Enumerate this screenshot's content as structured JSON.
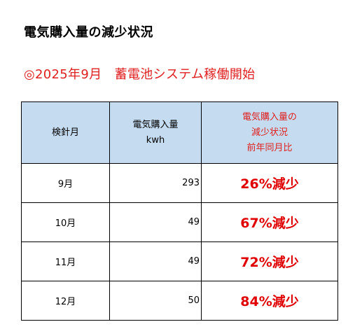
{
  "title": "電気購入量の減少状況",
  "subtitle": "◎2025年9月　蓄電池システム稼働開始",
  "table": {
    "headers": {
      "month": "検針月",
      "purchase_line1": "電気購入量",
      "purchase_line2": "kwh",
      "reduction_line1": "電気購入量の",
      "reduction_line2": "減少状況",
      "reduction_line3": "前年同月比"
    },
    "rows": [
      {
        "month": "9月",
        "value": "293",
        "reduction": "26%減少"
      },
      {
        "month": "10月",
        "value": "49",
        "reduction": "67%減少"
      },
      {
        "month": "11月",
        "value": "49",
        "reduction": "72%減少"
      },
      {
        "month": "12月",
        "value": "50",
        "reduction": "84%減少"
      }
    ]
  },
  "colors": {
    "header_bg": "#c5dcf0",
    "accent_red": "#e02020"
  }
}
